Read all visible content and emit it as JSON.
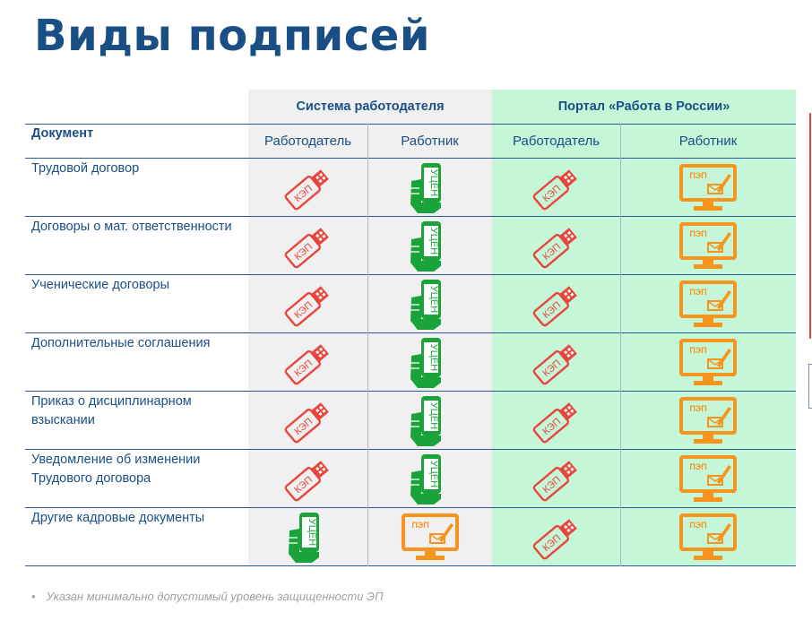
{
  "title": "Виды подписей",
  "table": {
    "group_headers": [
      "Система работодателя",
      "Портал «Работа в России»"
    ],
    "document_header": "Документ",
    "sub_headers": [
      "Работодатель",
      "Работник",
      "Работодатель",
      "Работник"
    ],
    "rows": [
      {
        "label": "Трудовой договор",
        "cells": [
          "kep",
          "uen",
          "kep",
          "pep"
        ]
      },
      {
        "label": "Договоры о мат. ответственности",
        "cells": [
          "kep",
          "uen",
          "kep",
          "pep"
        ]
      },
      {
        "label": "Ученические договоры",
        "cells": [
          "kep",
          "uen",
          "kep",
          "pep"
        ]
      },
      {
        "label": "Дополнительные соглашения",
        "cells": [
          "kep",
          "uen",
          "kep",
          "pep"
        ]
      },
      {
        "label": "Приказ о дисциплинарном взыскании",
        "cells": [
          "kep",
          "uen",
          "kep",
          "pep"
        ]
      },
      {
        "label": "Уведомление об изменении Трудового договора",
        "cells": [
          "kep",
          "uen",
          "kep",
          "pep"
        ]
      },
      {
        "label": "Другие кадровые документы",
        "cells": [
          "uen",
          "pep",
          "kep",
          "pep"
        ]
      }
    ]
  },
  "icon_labels": {
    "kep": "КЭП",
    "uen": "УЦЕН",
    "pep": "ПЭП"
  },
  "icon_names": {
    "kep": "usb-token-icon",
    "uen": "smartphone-uen-icon",
    "pep": "monitor-pep-icon"
  },
  "colors": {
    "title": "#1a4f86",
    "kep": "#e8453c",
    "uen": "#1aa33a",
    "pep": "#f7941d",
    "gray_bg": "#f0f0f0",
    "green_bg": "#c6f6d8"
  },
  "footnote": "Указан минимально допустимый уровень защищенности ЭП"
}
